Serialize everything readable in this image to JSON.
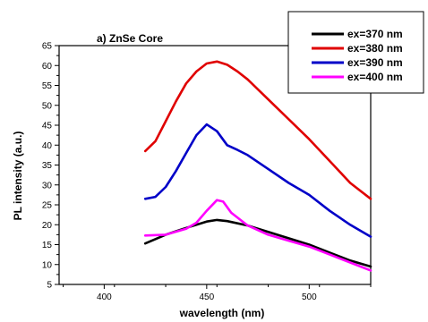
{
  "chart_data": {
    "type": "line",
    "title": "a) ZnSe Core",
    "xlabel": "wavelength (nm)",
    "ylabel": "PL intensity (a.u.)",
    "xlim": [
      378,
      530
    ],
    "ylim": [
      5,
      65
    ],
    "xticks": [
      400,
      450,
      500
    ],
    "yticks": [
      5,
      10,
      15,
      20,
      25,
      30,
      35,
      40,
      45,
      50,
      55,
      60,
      65
    ],
    "legend_position": "top-right",
    "grid": false,
    "series": [
      {
        "name": "ex=370 nm",
        "color": "#000000",
        "x": [
          420,
          430,
          440,
          450,
          455,
          460,
          470,
          480,
          490,
          500,
          510,
          520,
          530
        ],
        "y": [
          15.3,
          17.5,
          19.2,
          20.8,
          21.2,
          20.9,
          19.8,
          18.2,
          16.6,
          15.0,
          13.0,
          11.0,
          9.5
        ]
      },
      {
        "name": "ex=380 nm",
        "color": "#e00000",
        "x": [
          420,
          425,
          430,
          435,
          440,
          445,
          450,
          455,
          460,
          465,
          470,
          480,
          490,
          500,
          510,
          520,
          530
        ],
        "y": [
          38.5,
          41.0,
          46.0,
          51.0,
          55.5,
          58.5,
          60.5,
          61.0,
          60.2,
          58.5,
          56.5,
          51.5,
          46.5,
          41.5,
          36.0,
          30.5,
          26.5
        ]
      },
      {
        "name": "ex=390 nm",
        "color": "#0000c8",
        "x": [
          420,
          425,
          430,
          435,
          440,
          445,
          450,
          455,
          460,
          465,
          470,
          480,
          490,
          500,
          510,
          520,
          530
        ],
        "y": [
          26.5,
          27.0,
          29.5,
          33.5,
          38.0,
          42.5,
          45.2,
          43.5,
          40.0,
          38.8,
          37.5,
          34.0,
          30.5,
          27.5,
          23.5,
          20.0,
          17.0
        ]
      },
      {
        "name": "ex=400 nm",
        "color": "#ff00ff",
        "x": [
          420,
          430,
          440,
          445,
          450,
          455,
          458,
          462,
          470,
          480,
          490,
          500,
          510,
          520,
          530
        ],
        "y": [
          17.3,
          17.5,
          19.0,
          20.5,
          23.5,
          26.2,
          25.8,
          23.0,
          19.8,
          17.5,
          16.0,
          14.5,
          12.5,
          10.5,
          8.5
        ]
      }
    ]
  }
}
